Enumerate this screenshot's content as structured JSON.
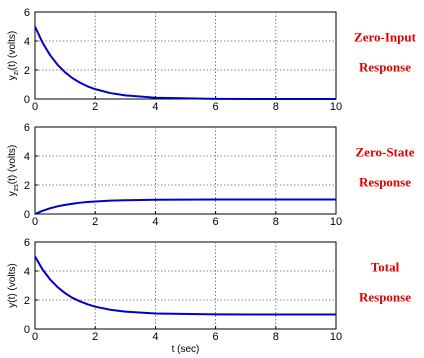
{
  "colors": {
    "line": "#0000cc",
    "grid": "#606060",
    "side_text": "#dd0000"
  },
  "xlabel": "t (sec)",
  "chart_data": [
    {
      "type": "line",
      "ylabel": {
        "main": "y",
        "sub": "zi",
        "rest": "(t)  (volts)"
      },
      "side_label": [
        "Zero-Input",
        "Response"
      ],
      "xlim": [
        0,
        10
      ],
      "ylim": [
        0,
        6
      ],
      "xticks": [
        0,
        2,
        4,
        6,
        8,
        10
      ],
      "yticks": [
        0,
        2,
        4,
        6
      ],
      "grid": true,
      "x": [
        0,
        0.25,
        0.5,
        0.75,
        1,
        1.25,
        1.5,
        1.75,
        2,
        2.5,
        3,
        4,
        6,
        8,
        10
      ],
      "y": [
        5,
        3.89,
        3.03,
        2.36,
        1.84,
        1.43,
        1.12,
        0.87,
        0.68,
        0.41,
        0.25,
        0.09,
        0.01,
        0,
        0
      ]
    },
    {
      "type": "line",
      "ylabel": {
        "main": "y",
        "sub": "zs",
        "rest": "(t)  (volts)"
      },
      "side_label": [
        "Zero-State",
        "Response"
      ],
      "xlim": [
        0,
        10
      ],
      "ylim": [
        0,
        6
      ],
      "xticks": [
        0,
        2,
        4,
        6,
        8,
        10
      ],
      "yticks": [
        0,
        2,
        4,
        6
      ],
      "grid": true,
      "x": [
        0,
        0.25,
        0.5,
        0.75,
        1,
        1.25,
        1.5,
        1.75,
        2,
        2.5,
        3,
        4,
        6,
        8,
        10
      ],
      "y": [
        0,
        0.22,
        0.39,
        0.53,
        0.63,
        0.71,
        0.78,
        0.83,
        0.86,
        0.92,
        0.95,
        0.98,
        1,
        1,
        1
      ]
    },
    {
      "type": "line",
      "ylabel": {
        "main": "y(t)  (volts)",
        "sub": "",
        "rest": ""
      },
      "side_label": [
        "Total",
        "Response"
      ],
      "xlim": [
        0,
        10
      ],
      "ylim": [
        0,
        6
      ],
      "xticks": [
        0,
        2,
        4,
        6,
        8,
        10
      ],
      "yticks": [
        0,
        2,
        4,
        6
      ],
      "grid": true,
      "x": [
        0,
        0.25,
        0.5,
        0.75,
        1,
        1.25,
        1.5,
        1.75,
        2,
        2.5,
        3,
        4,
        6,
        8,
        10
      ],
      "y": [
        5,
        4.11,
        3.42,
        2.89,
        2.47,
        2.14,
        1.9,
        1.7,
        1.54,
        1.33,
        1.2,
        1.07,
        1.01,
        1,
        1
      ]
    }
  ]
}
